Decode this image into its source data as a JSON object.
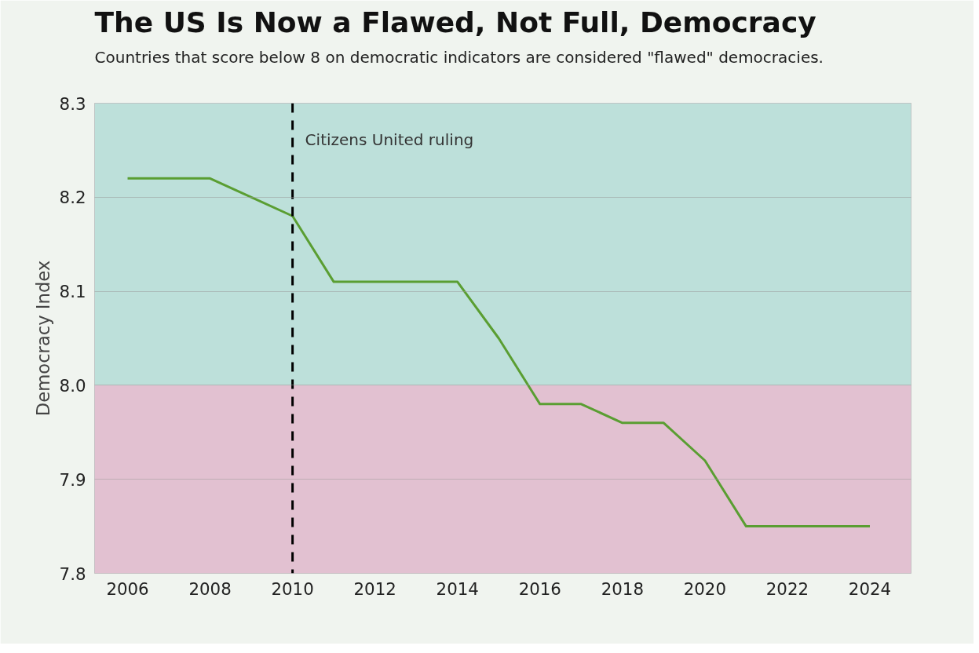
{
  "chart_data": {
    "type": "line",
    "title": "The US Is Now a Flawed, Not Full, Democracy",
    "subtitle": "Countries that score below 8 on democratic indicators are considered \"flawed\" democracies.",
    "ylabel": "Democracy Index",
    "x": [
      2006,
      2008,
      2010,
      2011,
      2012,
      2013,
      2014,
      2015,
      2016,
      2017,
      2018,
      2019,
      2020,
      2021,
      2022,
      2023,
      2024
    ],
    "series": [
      {
        "color": "#5a9e32",
        "values": [
          8.22,
          8.22,
          8.18,
          8.11,
          8.11,
          8.11,
          8.11,
          8.05,
          7.98,
          7.98,
          7.96,
          7.96,
          7.92,
          7.85,
          7.85,
          7.85,
          7.85
        ]
      }
    ],
    "xlim": [
      2005.2,
      2025
    ],
    "xticks": [
      2006,
      2008,
      2010,
      2012,
      2014,
      2016,
      2018,
      2020,
      2022,
      2024
    ],
    "ylim": [
      7.8,
      8.3
    ],
    "yticks": [
      {
        "value": 7.8,
        "label": "7.8"
      },
      {
        "value": 7.9,
        "label": "7.9"
      },
      {
        "value": 8.0,
        "label": "8.0"
      },
      {
        "value": 8.1,
        "label": "8.1"
      },
      {
        "value": 8.2,
        "label": "8.2"
      },
      {
        "value": 8.3,
        "label": "8.3"
      }
    ],
    "bands": [
      {
        "axis": "y",
        "from": 8.0,
        "to": 8.3,
        "color": "#bde0da"
      },
      {
        "axis": "y",
        "from": 7.8,
        "to": 8.0,
        "color": "#e2c1d1"
      }
    ],
    "ref_lines": [
      {
        "axis": "x",
        "value": 2010,
        "label": "Citizens United ruling",
        "color": "#000000",
        "line_style": "dashed"
      }
    ],
    "grid": "y",
    "marker": "none",
    "line_style": "solid"
  }
}
